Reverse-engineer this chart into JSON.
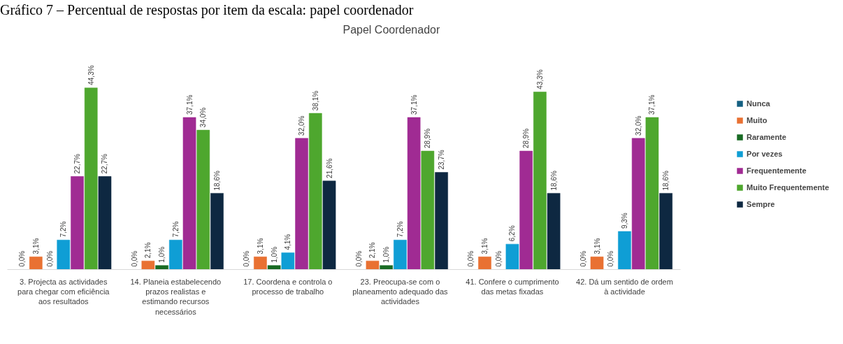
{
  "chart_data": {
    "type": "bar",
    "title": "Papel Coordenador",
    "annotations": [
      "Gráfico 7 – Percentual de respostas por item da escala: papel coordenador"
    ],
    "categories": [
      "3. Projecta as actividades para chegar com eficiência aos resultados",
      "14. Planeia estabelecendo prazos realistas e estimando recursos necessários",
      "17. Coordena e controla o processo de trabalho",
      "23. Preocupa-se com o planeamento adequado das actividades",
      "41. Confere o cumprimento das metas fixadas",
      "42. Dá um sentido de ordem à actividade"
    ],
    "series": [
      {
        "name": "Nunca",
        "color": "#156082",
        "values": [
          0,
          0,
          0,
          0,
          0,
          0
        ],
        "value_labels": [
          "0,0%",
          "0,0%",
          "0,0%",
          "0,0%",
          "0,0%",
          "0,0%"
        ]
      },
      {
        "name": "Muito",
        "color": "#e97132",
        "values": [
          3.1,
          2.1,
          3.1,
          2.1,
          3.1,
          3.1
        ],
        "value_labels": [
          "3,1%",
          "2,1%",
          "3,1%",
          "2,1%",
          "3,1%",
          "3,1%"
        ]
      },
      {
        "name": "Raramente",
        "color": "#196b24",
        "values": [
          0,
          1.0,
          1.0,
          1.0,
          0,
          0
        ],
        "value_labels": [
          "0,0%",
          "1,0%",
          "1,0%",
          "1,0%",
          "0,0%",
          "0,0%"
        ]
      },
      {
        "name": "Por vezes",
        "color": "#0f9ed5",
        "values": [
          7.2,
          7.2,
          4.1,
          7.2,
          6.2,
          9.3
        ],
        "value_labels": [
          "7,2%",
          "7,2%",
          "4,1%",
          "7,2%",
          "6,2%",
          "9,3%"
        ]
      },
      {
        "name": "Frequentemente",
        "color": "#a02b93",
        "values": [
          22.7,
          37.1,
          32.0,
          37.1,
          28.9,
          32.0
        ],
        "value_labels": [
          "22,7%",
          "37,1%",
          "32,0%",
          "37,1%",
          "28,9%",
          "32,0%"
        ]
      },
      {
        "name": "Muito Frequentemente",
        "color": "#4ea72e",
        "values": [
          44.3,
          34.0,
          38.1,
          28.9,
          43.3,
          37.1
        ],
        "value_labels": [
          "44,3%",
          "34,0%",
          "38,1%",
          "28,9%",
          "43,3%",
          "37,1%"
        ]
      },
      {
        "name": "Sempre",
        "color": "#0e2841",
        "values": [
          22.7,
          18.6,
          21.6,
          23.7,
          18.6,
          18.6
        ],
        "value_labels": [
          "22,7%",
          "18,6%",
          "21,6%",
          "23,7%",
          "18,6%",
          "18,6%"
        ]
      }
    ],
    "legend": "right",
    "grid": false
  }
}
